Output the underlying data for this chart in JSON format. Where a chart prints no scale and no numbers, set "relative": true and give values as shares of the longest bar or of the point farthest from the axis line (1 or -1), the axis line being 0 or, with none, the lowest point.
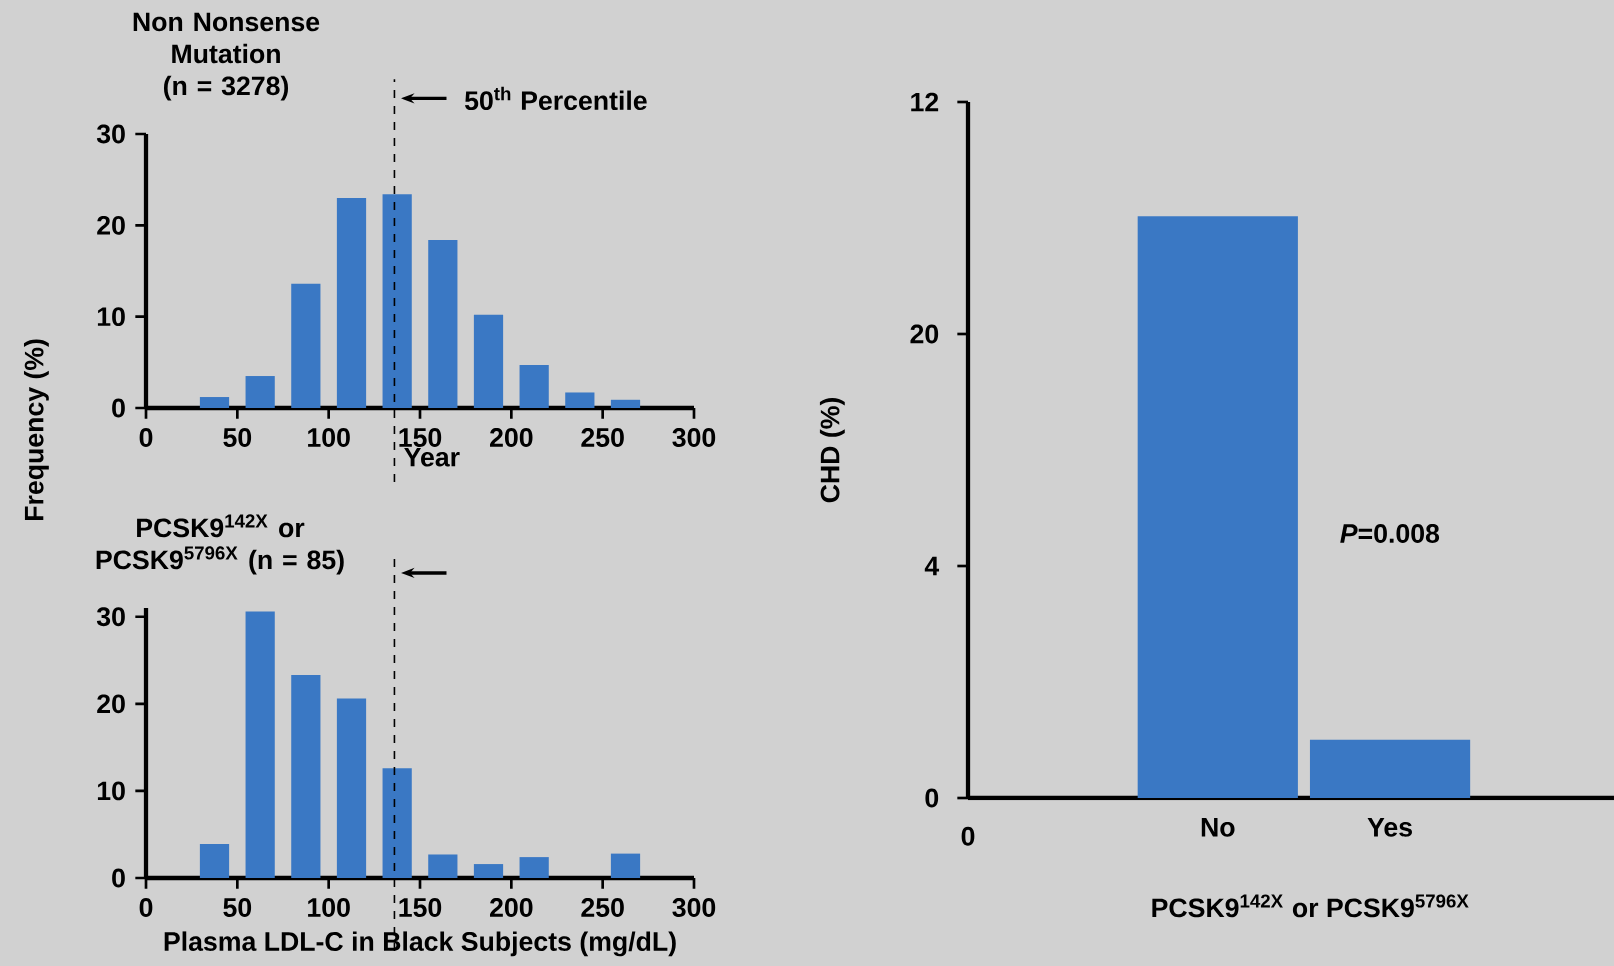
{
  "chart_data": [
    {
      "type": "histogram",
      "title": "Non Nonsense Mutation (n = 3278)",
      "ylabel": "Frequency (%)",
      "bins": [
        25,
        50,
        75,
        100,
        125,
        150,
        175,
        200,
        225,
        250,
        275
      ],
      "values": [
        1.2,
        3.5,
        13.6,
        23,
        23.4,
        18.4,
        10.2,
        4.7,
        1.7,
        0.9
      ],
      "color": "#3a78c4",
      "xlim": [
        0,
        300
      ],
      "xticks": [
        0,
        50,
        100,
        150,
        200,
        250,
        300
      ],
      "ylim": [
        0,
        30
      ],
      "yticks": [
        0,
        10,
        20,
        30
      ],
      "ref_lines": [
        {
          "axis": "x",
          "value": 136,
          "label": "50$^{th}$ Percentile",
          "line_style": "dashed"
        }
      ],
      "annotations": [
        "Year"
      ]
    },
    {
      "type": "histogram",
      "title": "PCSK9$^{142X}$ or PCSK9$^{5796X}$ (n = 85)",
      "xlabel": "Plasma LDL-C in Black Subjects (mg/dL)",
      "bins": [
        25,
        50,
        75,
        100,
        125,
        150,
        175,
        200,
        225,
        250,
        275
      ],
      "values": [
        3.9,
        30.6,
        23.3,
        20.6,
        12.6,
        2.7,
        1.6,
        2.4,
        0,
        2.8
      ],
      "color": "#3a78c4",
      "xlim": [
        0,
        300
      ],
      "xticks": [
        0,
        50,
        100,
        150,
        200,
        250,
        300
      ],
      "ylim": [
        0,
        31
      ],
      "yticks": [
        0,
        10,
        20,
        30
      ],
      "ref_lines": [
        {
          "axis": "x",
          "value": 136,
          "line_style": "dashed"
        }
      ]
    },
    {
      "type": "bar",
      "relative": true,
      "categories": [
        "No",
        "Yes"
      ],
      "values": [
        1,
        0.1
      ],
      "color": "#3a78c4",
      "ylabel": "CHD (%)",
      "xlabel": "PCSK9$^{142X}$ or PCSK9$^{5796X}$",
      "annotations": [
        "0",
        "*P*=0.008",
        "0",
        "4",
        "20",
        "12"
      ]
    }
  ]
}
